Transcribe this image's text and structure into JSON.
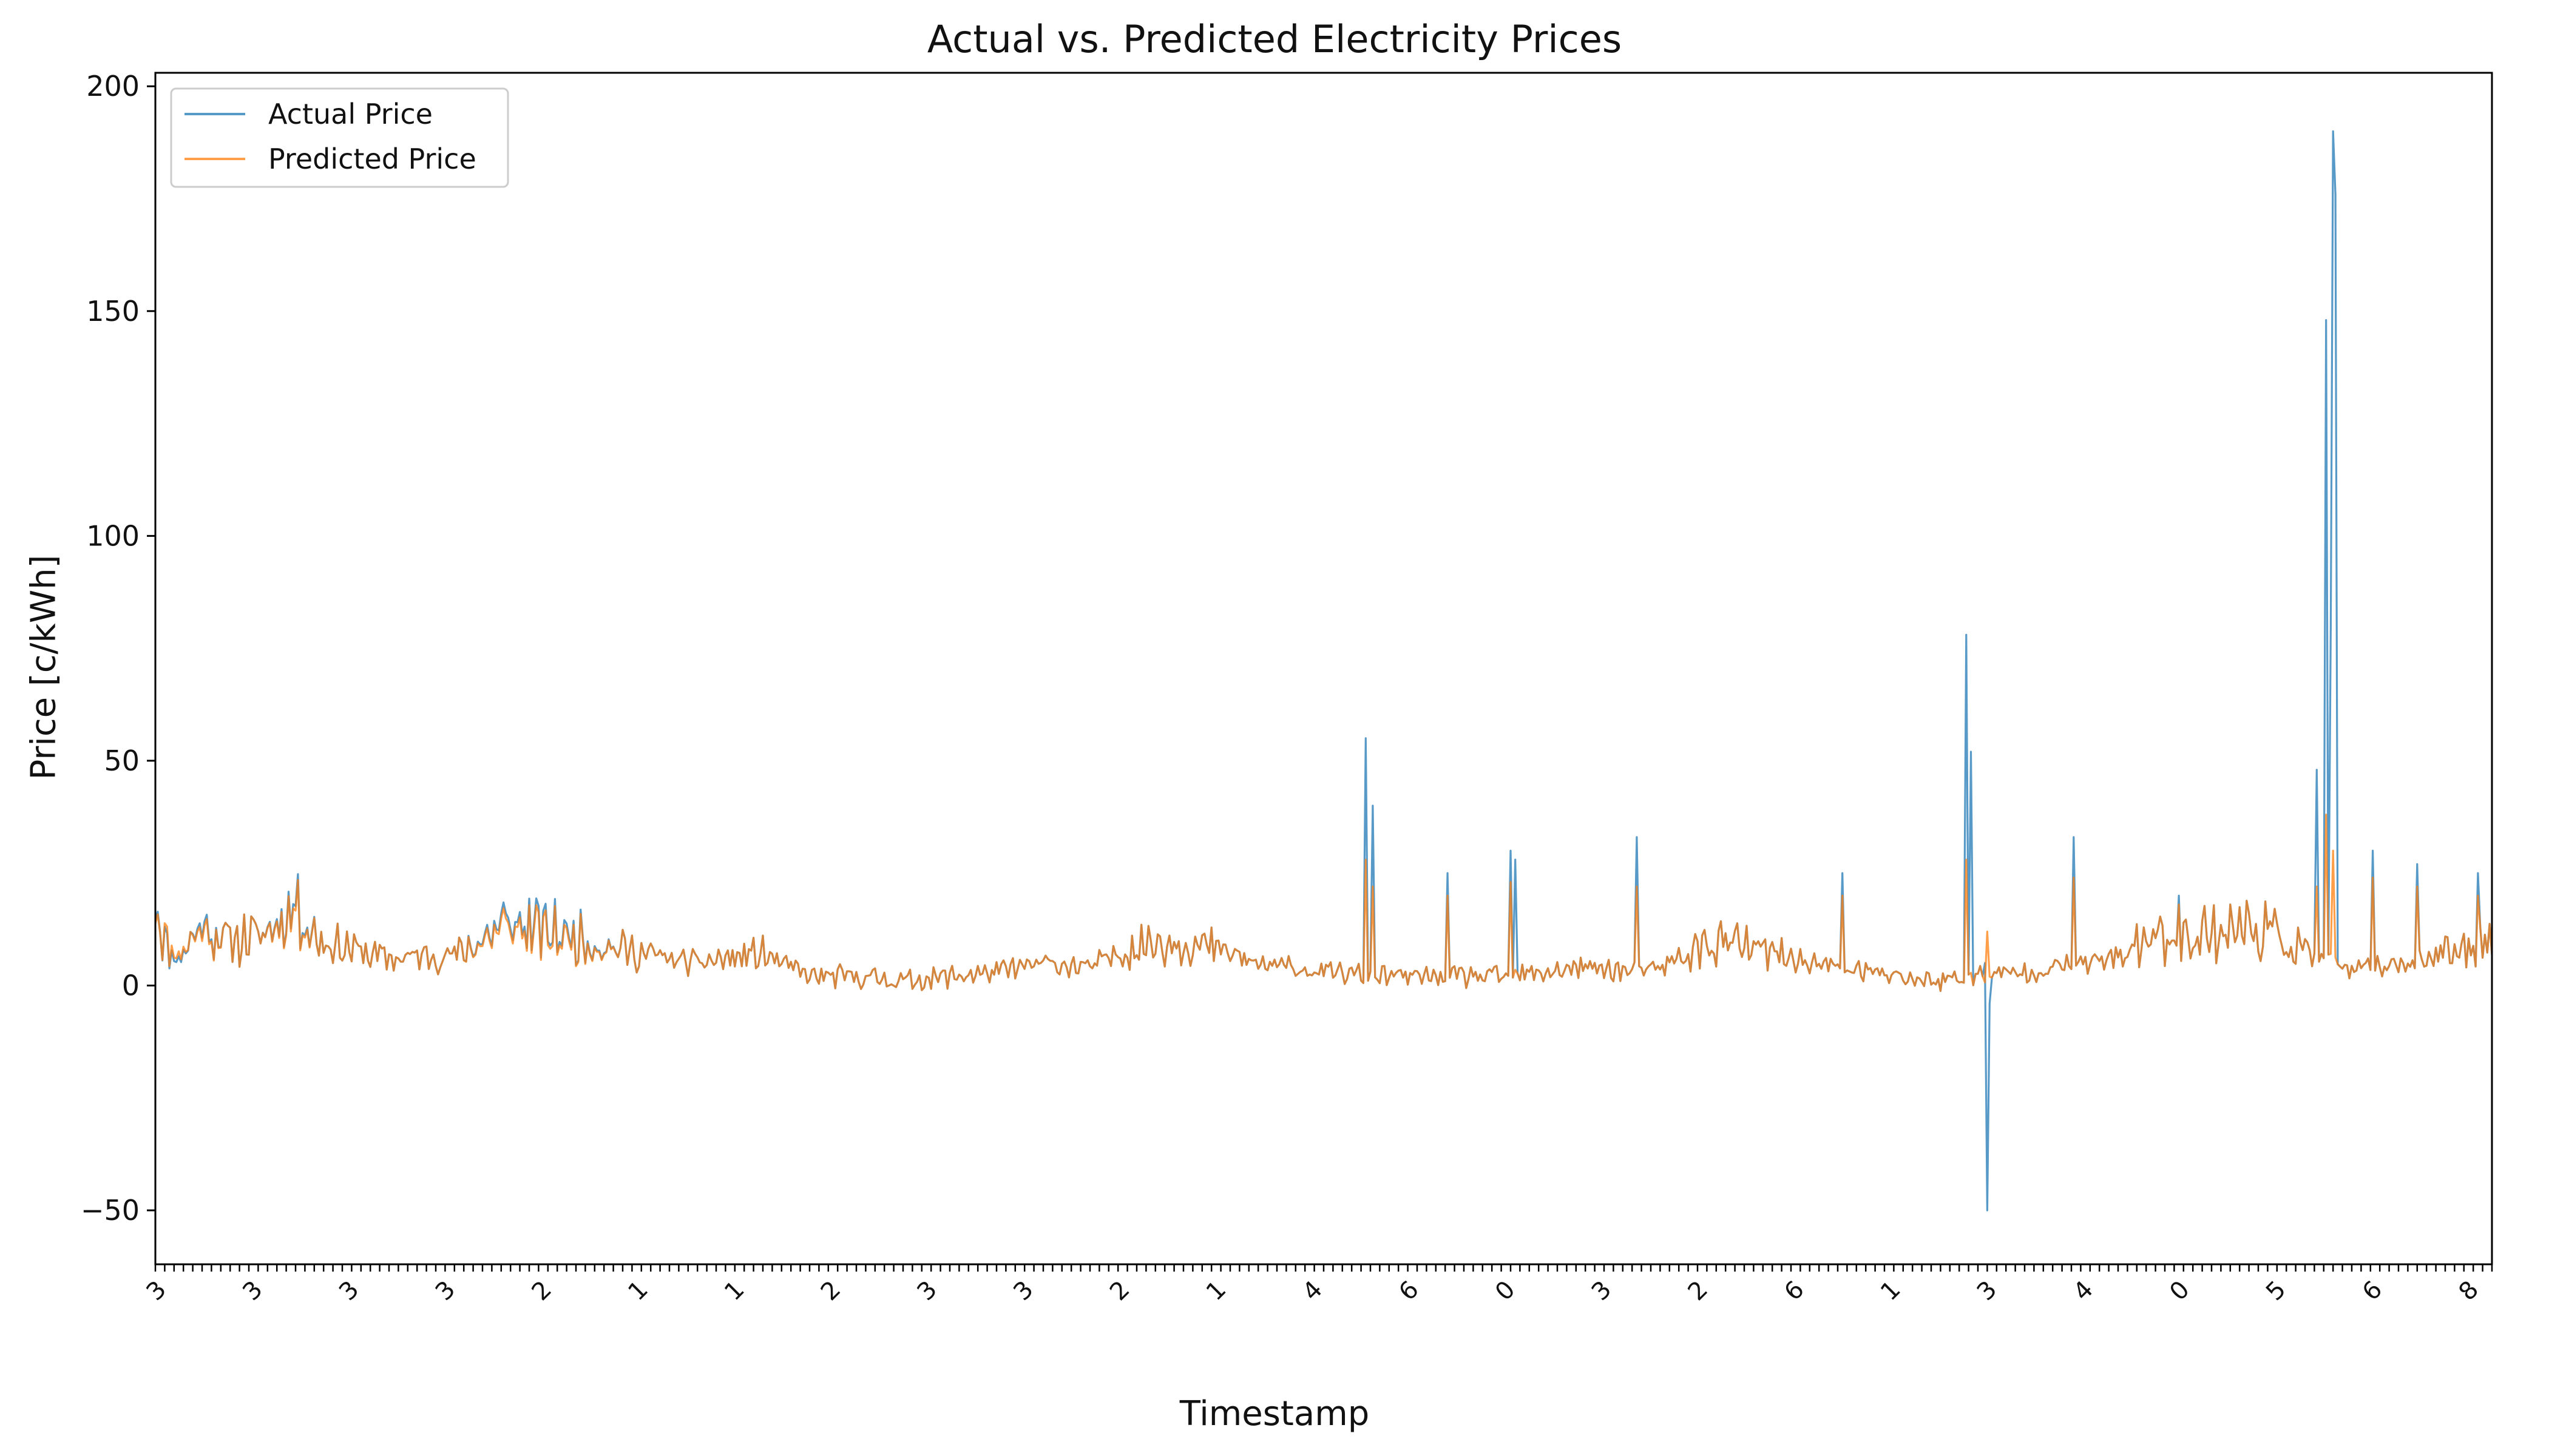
{
  "chart_data": {
    "type": "line",
    "title": "Actual vs. Predicted Electricity Prices",
    "xlabel": "Timestamp",
    "ylabel": "Price [c/kWh]",
    "ylim": [
      -62,
      203
    ],
    "yticks": [
      -50,
      0,
      50,
      100,
      150,
      200
    ],
    "ytick_labels": [
      "−50",
      "0",
      "50",
      "100",
      "150",
      "200"
    ],
    "x_index_range": [
      0,
      1000
    ],
    "xtick_labels_visible": [
      "3",
      "3",
      "3",
      "3",
      "2",
      "1",
      "1",
      "2",
      "3",
      "3",
      "2",
      "1",
      "4",
      "6",
      "0",
      "3",
      "2",
      "6",
      "1",
      "3",
      "4",
      "0",
      "5",
      "6",
      "8"
    ],
    "legend_position": "upper-left",
    "grid": false,
    "series": [
      {
        "name": "Actual Price",
        "color": "#1f77b4",
        "opacity": 0.75,
        "key_points": [
          [
            0,
            19
          ],
          [
            5,
            8
          ],
          [
            10,
            6
          ],
          [
            20,
            14
          ],
          [
            30,
            10
          ],
          [
            45,
            11
          ],
          [
            60,
            18
          ],
          [
            70,
            10
          ],
          [
            85,
            8
          ],
          [
            100,
            6
          ],
          [
            130,
            7
          ],
          [
            150,
            14
          ],
          [
            170,
            12
          ],
          [
            200,
            8
          ],
          [
            230,
            5
          ],
          [
            260,
            7
          ],
          [
            280,
            2
          ],
          [
            300,
            2
          ],
          [
            320,
            1
          ],
          [
            340,
            2
          ],
          [
            360,
            3
          ],
          [
            380,
            5
          ],
          [
            400,
            4
          ],
          [
            420,
            9
          ],
          [
            440,
            10
          ],
          [
            460,
            7
          ],
          [
            470,
            5
          ],
          [
            500,
            3
          ],
          [
            530,
            2
          ],
          [
            580,
            2
          ],
          [
            610,
            4
          ],
          [
            640,
            3
          ],
          [
            660,
            8
          ],
          [
            670,
            10
          ],
          [
            700,
            6
          ],
          [
            720,
            4
          ],
          [
            760,
            1
          ],
          [
            800,
            3
          ],
          [
            840,
            6
          ],
          [
            850,
            10
          ],
          [
            900,
            13
          ],
          [
            940,
            3
          ],
          [
            990,
            8
          ],
          [
            1000,
            12
          ]
        ],
        "spikes": [
          [
            518,
            55
          ],
          [
            521,
            40
          ],
          [
            553,
            25
          ],
          [
            580,
            30
          ],
          [
            582,
            28
          ],
          [
            634,
            33
          ],
          [
            722,
            25
          ],
          [
            775,
            78
          ],
          [
            777,
            52
          ],
          [
            783,
            5
          ],
          [
            784,
            -50
          ],
          [
            785,
            -4
          ],
          [
            821,
            33
          ],
          [
            866,
            20
          ],
          [
            925,
            48
          ],
          [
            929,
            148
          ],
          [
            931,
            80
          ],
          [
            932,
            190
          ],
          [
            933,
            176
          ],
          [
            949,
            30
          ],
          [
            968,
            27
          ],
          [
            994,
            25
          ]
        ]
      },
      {
        "name": "Predicted Price",
        "color": "#ff7f0e",
        "opacity": 0.75,
        "key_points": [
          [
            0,
            18
          ],
          [
            5,
            9
          ],
          [
            10,
            7
          ],
          [
            20,
            13
          ],
          [
            30,
            10
          ],
          [
            45,
            11
          ],
          [
            60,
            17
          ],
          [
            70,
            10
          ],
          [
            85,
            8
          ],
          [
            100,
            6
          ],
          [
            130,
            7
          ],
          [
            150,
            13
          ],
          [
            170,
            11
          ],
          [
            200,
            8
          ],
          [
            230,
            5
          ],
          [
            260,
            7
          ],
          [
            280,
            2
          ],
          [
            300,
            2
          ],
          [
            320,
            1
          ],
          [
            340,
            2
          ],
          [
            360,
            3
          ],
          [
            380,
            5
          ],
          [
            400,
            4
          ],
          [
            420,
            9
          ],
          [
            440,
            10
          ],
          [
            460,
            7
          ],
          [
            470,
            5
          ],
          [
            500,
            3
          ],
          [
            530,
            2
          ],
          [
            580,
            2
          ],
          [
            610,
            4
          ],
          [
            640,
            3
          ],
          [
            660,
            8
          ],
          [
            670,
            10
          ],
          [
            700,
            6
          ],
          [
            720,
            4
          ],
          [
            760,
            1
          ],
          [
            800,
            3
          ],
          [
            840,
            6
          ],
          [
            850,
            10
          ],
          [
            900,
            13
          ],
          [
            940,
            3
          ],
          [
            990,
            8
          ],
          [
            1000,
            12
          ]
        ],
        "spikes": [
          [
            518,
            28
          ],
          [
            521,
            22
          ],
          [
            553,
            20
          ],
          [
            580,
            23
          ],
          [
            634,
            22
          ],
          [
            722,
            20
          ],
          [
            775,
            28
          ],
          [
            784,
            12
          ],
          [
            821,
            24
          ],
          [
            866,
            18
          ],
          [
            925,
            22
          ],
          [
            929,
            38
          ],
          [
            932,
            30
          ],
          [
            949,
            24
          ],
          [
            968,
            22
          ],
          [
            994,
            20
          ]
        ]
      }
    ]
  }
}
